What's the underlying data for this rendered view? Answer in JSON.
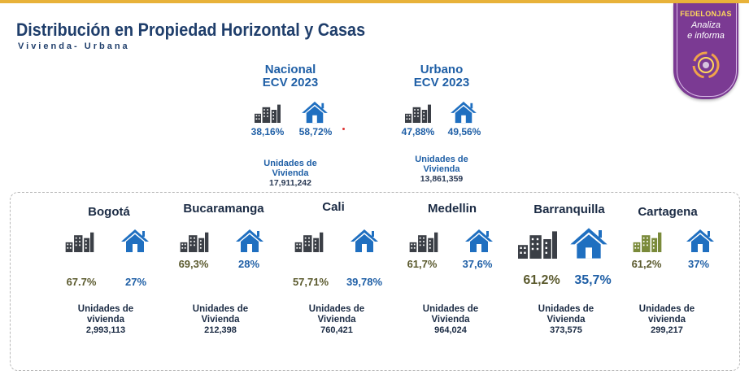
{
  "header": {
    "title": "Distribución en Propiedad Horizontal y Casas",
    "subtitle": "Vivienda- Urbana"
  },
  "badge": {
    "brand": "FEDELONJAS",
    "line1": "Analiza",
    "line2": "e informa"
  },
  "colors": {
    "accent_bar": "#e8b23a",
    "badge_purple": "#7b3a93",
    "headline_blue": "#1f5fa6",
    "building_gray": "#3b3f46",
    "building_olive": "#7a8a3a",
    "house_blue": "#1f6fc0"
  },
  "summary": [
    {
      "title_line1": "Nacional",
      "title_line2": "ECV 2023",
      "ph_pct": "38,16%",
      "casa_pct": "58,72%",
      "units_label_line1": "Unidades de",
      "units_label_line2": "Vivienda",
      "units_value": "17,911,242"
    },
    {
      "title_line1": "Urbano",
      "title_line2": "ECV 2023",
      "ph_pct": "47,88%",
      "casa_pct": "49,56%",
      "units_label_line1": "Unidades de",
      "units_label_line2": "Vivienda",
      "units_value": "13,861,359"
    }
  ],
  "cities": [
    {
      "name": "Bogotá",
      "ph_pct": "67.7%",
      "casa_pct": "27%",
      "units_label_line1": "Unidades de",
      "units_label_line2": "vivienda",
      "units_value": "2,993,113"
    },
    {
      "name": "Bucaramanga",
      "ph_pct": "69,3%",
      "casa_pct": "28%",
      "units_label_line1": "Unidades de",
      "units_label_line2": "Vivienda",
      "units_value": "212,398"
    },
    {
      "name": "Cali",
      "ph_pct": "57,71%",
      "casa_pct": "39,78%",
      "units_label_line1": "Unidades de",
      "units_label_line2": "Vivienda",
      "units_value": "760,421"
    },
    {
      "name": "Medellin",
      "ph_pct": "61,7%",
      "casa_pct": "37,6%",
      "units_label_line1": "Unidades de",
      "units_label_line2": "Vivienda",
      "units_value": "964,024"
    },
    {
      "name": "Barranquilla",
      "ph_pct": "61,2%",
      "casa_pct": "35,7%",
      "units_label_line1": "Unidades de",
      "units_label_line2": "Vivienda",
      "units_value": "373,575"
    },
    {
      "name": "Cartagena",
      "ph_pct": "61,2%",
      "casa_pct": "37%",
      "units_label_line1": "Unidades de",
      "units_label_line2": "vivienda",
      "units_value": "299,217"
    }
  ]
}
